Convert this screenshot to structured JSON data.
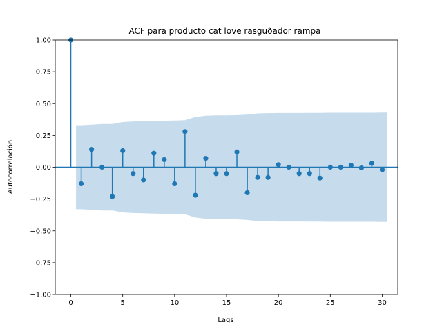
{
  "chart_data": {
    "type": "scatter",
    "title": "ACF para producto cat love rasguðador  rampa",
    "xlabel": "Lags",
    "ylabel": "Autocorrelación",
    "xlim": [
      -1.5,
      31.5
    ],
    "ylim": [
      -1.0,
      1.0
    ],
    "x_ticks": [
      0,
      5,
      10,
      15,
      20,
      25,
      30
    ],
    "x_tick_labels": [
      "0",
      "5",
      "10",
      "15",
      "20",
      "25",
      "30"
    ],
    "y_ticks": [
      -1.0,
      -0.75,
      -0.5,
      -0.25,
      0.0,
      0.25,
      0.5,
      0.75,
      1.0
    ],
    "y_tick_labels": [
      "−1.00",
      "−0.75",
      "−0.50",
      "−0.25",
      "0.00",
      "0.25",
      "0.50",
      "0.75",
      "1.00"
    ],
    "grid": false,
    "colors": {
      "series": "#1f77b4",
      "confidence_band": "#c6dbec"
    },
    "lags": [
      0,
      1,
      2,
      3,
      4,
      5,
      6,
      7,
      8,
      9,
      10,
      11,
      12,
      13,
      14,
      15,
      16,
      17,
      18,
      19,
      20,
      21,
      22,
      23,
      24,
      25,
      26,
      27,
      28,
      29,
      30
    ],
    "acf": [
      1.0,
      -0.13,
      0.14,
      0.0,
      -0.23,
      0.13,
      -0.05,
      -0.1,
      0.11,
      0.06,
      -0.13,
      0.28,
      -0.22,
      0.07,
      -0.05,
      -0.05,
      0.12,
      -0.2,
      -0.08,
      -0.08,
      0.02,
      0.0,
      -0.05,
      -0.05,
      -0.085,
      0.0,
      0.0,
      0.015,
      -0.005,
      0.03,
      -0.02
    ],
    "confidence_band": {
      "x": [
        0.5,
        1,
        2,
        3,
        4,
        5,
        6,
        7,
        8,
        9,
        10,
        11,
        12,
        13,
        14,
        15,
        16,
        17,
        18,
        19,
        20,
        21,
        22,
        23,
        24,
        25,
        26,
        27,
        28,
        29,
        30,
        30.5
      ],
      "upper": [
        0.33,
        0.33,
        0.335,
        0.34,
        0.34,
        0.355,
        0.36,
        0.362,
        0.365,
        0.366,
        0.367,
        0.37,
        0.395,
        0.405,
        0.408,
        0.408,
        0.409,
        0.414,
        0.423,
        0.425,
        0.426,
        0.426,
        0.426,
        0.427,
        0.427,
        0.428,
        0.428,
        0.428,
        0.428,
        0.428,
        0.429,
        0.429
      ]
    }
  }
}
